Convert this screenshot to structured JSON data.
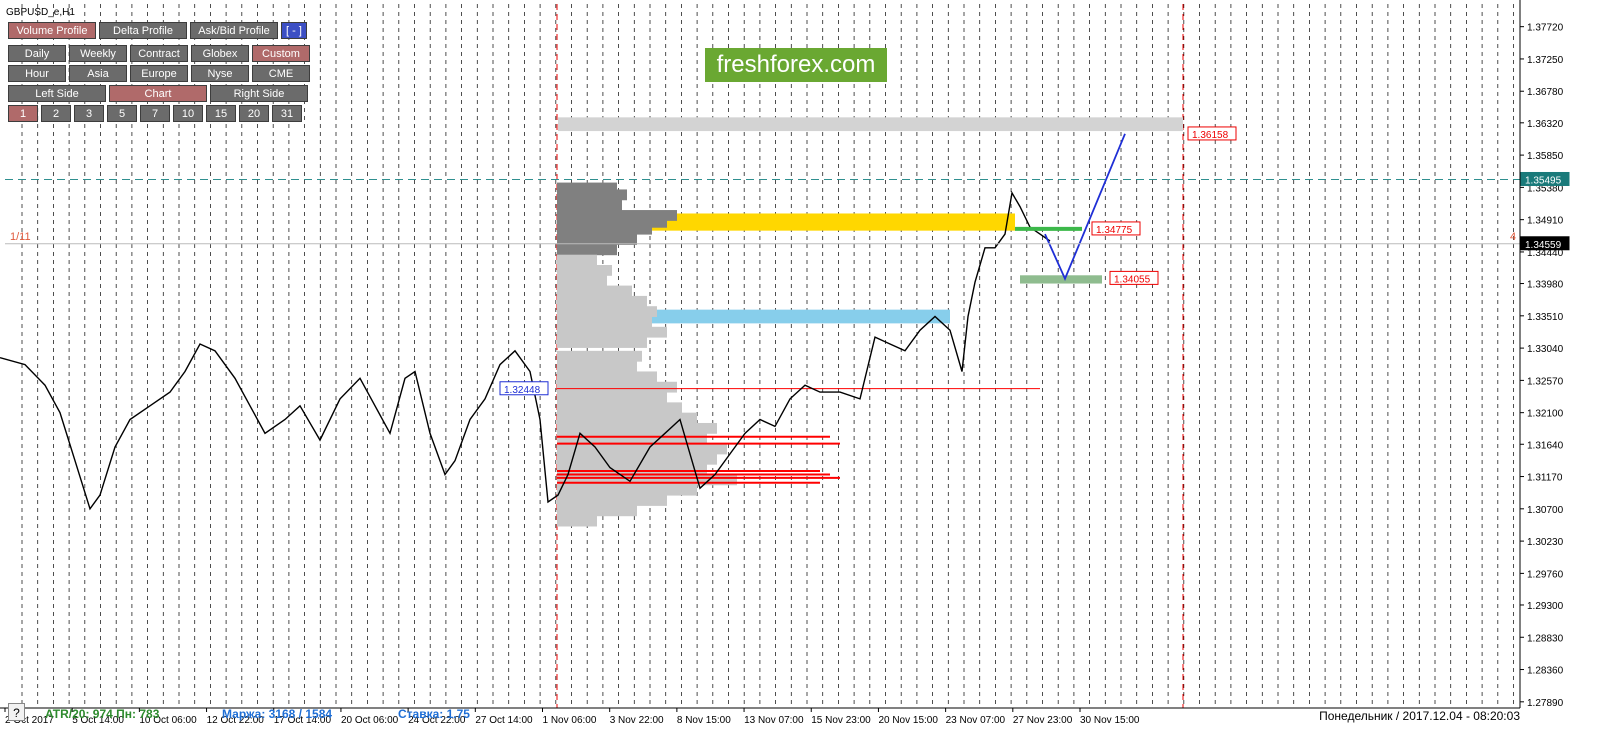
{
  "symbol_label": "GBPUSD_e,H1",
  "panel": {
    "row1": [
      {
        "label": "Volume Profile",
        "active": true
      },
      {
        "label": "Delta Profile",
        "active": false
      },
      {
        "label": "Ask/Bid Profile",
        "active": false
      },
      {
        "label": "[ - ]",
        "active": false,
        "blue": true
      }
    ],
    "row2": [
      {
        "label": "Daily",
        "active": false
      },
      {
        "label": "Weekly",
        "active": false
      },
      {
        "label": "Contract",
        "active": false
      },
      {
        "label": "Globex",
        "active": false
      },
      {
        "label": "Custom",
        "active": true
      }
    ],
    "row3": [
      {
        "label": "Hour",
        "active": false
      },
      {
        "label": "Asia",
        "active": false
      },
      {
        "label": "Europe",
        "active": false
      },
      {
        "label": "Nyse",
        "active": false
      },
      {
        "label": "CME",
        "active": false
      }
    ],
    "row4": [
      {
        "label": "Left Side",
        "active": false
      },
      {
        "label": "Chart",
        "active": true
      },
      {
        "label": "Right Side",
        "active": false
      }
    ],
    "row5": [
      {
        "label": "1",
        "active": true
      },
      {
        "label": "2",
        "active": false
      },
      {
        "label": "3",
        "active": false
      },
      {
        "label": "5",
        "active": false
      },
      {
        "label": "7",
        "active": false
      },
      {
        "label": "10",
        "active": false
      },
      {
        "label": "15",
        "active": false
      },
      {
        "label": "20",
        "active": false
      },
      {
        "label": "31",
        "active": false
      }
    ]
  },
  "logo_text": "freshforex.com",
  "status": {
    "atr": "ATR/20: 974 Пн: 783",
    "margin": "Маржа: 3168 / 1584",
    "rate": "Ставка: 1.75",
    "help": "?"
  },
  "footer_time": "Понедельник  /  2017.12.04  -  08:20:03",
  "left_marker": "1/11",
  "right_marker": "4",
  "colors": {
    "candles": "#000000",
    "poc_zone": "#ffd700",
    "value_zone": "#87ceeb",
    "target_zone": "#d3d3d3",
    "green_level": "#3cb84a",
    "green_zone": "#8fbc8f",
    "hvn_lines": "#ff0000",
    "forecast": "#1f2fd6",
    "dashed_teal": "#2f8f8f",
    "bid_tag": "#1a7a7a",
    "price_tag": "#000000",
    "profile_dark": "#808080",
    "profile_light": "#c8c8c8"
  },
  "chart_data": {
    "type": "candlestick",
    "timeframe": "H1",
    "ylim": [
      1.278,
      1.3805
    ],
    "y_ticks": [
      "1.37720",
      "1.37250",
      "1.36780",
      "1.36320",
      "1.35850",
      "1.35380",
      "1.34910",
      "1.34440",
      "1.33980",
      "1.33510",
      "1.33040",
      "1.32570",
      "1.32100",
      "1.31640",
      "1.31170",
      "1.30700",
      "1.30230",
      "1.29760",
      "1.29300",
      "1.28830",
      "1.28360",
      "1.27890"
    ],
    "x_ticks": [
      "2 Oct 2017",
      "5 Oct 14:00",
      "10 Oct 06:00",
      "12 Oct 22:00",
      "17 Oct 14:00",
      "20 Oct 06:00",
      "24 Oct 22:00",
      "27 Oct 14:00",
      "1 Nov 06:00",
      "3 Nov 22:00",
      "8 Nov 15:00",
      "13 Nov 07:00",
      "15 Nov 23:00",
      "20 Nov 15:00",
      "23 Nov 07:00",
      "27 Nov 23:00",
      "30 Nov 15:00"
    ],
    "price_path": [
      [
        0,
        1.329
      ],
      [
        25,
        1.328
      ],
      [
        45,
        1.325
      ],
      [
        60,
        1.321
      ],
      [
        75,
        1.314
      ],
      [
        90,
        1.307
      ],
      [
        100,
        1.309
      ],
      [
        115,
        1.316
      ],
      [
        130,
        1.32
      ],
      [
        150,
        1.322
      ],
      [
        170,
        1.324
      ],
      [
        185,
        1.327
      ],
      [
        200,
        1.331
      ],
      [
        215,
        1.33
      ],
      [
        235,
        1.326
      ],
      [
        250,
        1.322
      ],
      [
        265,
        1.318
      ],
      [
        285,
        1.32
      ],
      [
        300,
        1.322
      ],
      [
        320,
        1.317
      ],
      [
        340,
        1.323
      ],
      [
        360,
        1.326
      ],
      [
        375,
        1.322
      ],
      [
        390,
        1.318
      ],
      [
        405,
        1.326
      ],
      [
        415,
        1.327
      ],
      [
        430,
        1.318
      ],
      [
        445,
        1.312
      ],
      [
        455,
        1.314
      ],
      [
        470,
        1.32
      ],
      [
        485,
        1.323
      ],
      [
        500,
        1.328
      ],
      [
        515,
        1.33
      ],
      [
        530,
        1.327
      ],
      [
        540,
        1.32
      ],
      [
        548,
        1.308
      ],
      [
        558,
        1.309
      ],
      [
        568,
        1.312
      ],
      [
        580,
        1.318
      ],
      [
        595,
        1.316
      ],
      [
        610,
        1.313
      ],
      [
        630,
        1.311
      ],
      [
        650,
        1.316
      ],
      [
        665,
        1.318
      ],
      [
        680,
        1.32
      ],
      [
        690,
        1.315
      ],
      [
        700,
        1.31
      ],
      [
        715,
        1.312
      ],
      [
        730,
        1.315
      ],
      [
        745,
        1.318
      ],
      [
        760,
        1.32
      ],
      [
        775,
        1.319
      ],
      [
        790,
        1.323
      ],
      [
        805,
        1.325
      ],
      [
        820,
        1.324
      ],
      [
        840,
        1.324
      ],
      [
        860,
        1.323
      ],
      [
        875,
        1.332
      ],
      [
        890,
        1.331
      ],
      [
        905,
        1.33
      ],
      [
        920,
        1.333
      ],
      [
        935,
        1.335
      ],
      [
        950,
        1.333
      ],
      [
        962,
        1.327
      ],
      [
        968,
        1.335
      ],
      [
        975,
        1.34
      ],
      [
        985,
        1.345
      ],
      [
        995,
        1.345
      ],
      [
        1005,
        1.347
      ],
      [
        1012,
        1.353
      ],
      [
        1020,
        1.351
      ],
      [
        1030,
        1.348
      ],
      [
        1040,
        1.347
      ],
      [
        1050,
        1.346
      ]
    ],
    "forecast_path": [
      [
        1045,
        1.347
      ],
      [
        1065,
        1.3405
      ],
      [
        1125,
        1.3616
      ]
    ],
    "labels": {
      "current_price": "1.34559",
      "bid_line": "1.35495",
      "target_high": "1.36158",
      "level_green": "1.34775",
      "level_low": "1.34055",
      "blue_box": "1.32448"
    },
    "levels": {
      "current_price": 1.34559,
      "bid_line": 1.35495,
      "target_high": 1.36158,
      "level_green": 1.34775,
      "level_low": 1.34055,
      "blue_box": 1.32448
    },
    "zones": {
      "target": [
        1.362,
        1.364
      ],
      "poc": [
        1.3475,
        1.35
      ],
      "value": [
        1.334,
        1.336
      ],
      "green": [
        1.3398,
        1.341
      ]
    },
    "profile": [
      [
        1.3545,
        60
      ],
      [
        1.3535,
        70
      ],
      [
        1.352,
        65
      ],
      [
        1.3505,
        120
      ],
      [
        1.3495,
        110
      ],
      [
        1.3485,
        95
      ],
      [
        1.347,
        80
      ],
      [
        1.3455,
        60
      ],
      [
        1.344,
        40
      ],
      [
        1.3425,
        55
      ],
      [
        1.341,
        50
      ],
      [
        1.3395,
        75
      ],
      [
        1.338,
        90
      ],
      [
        1.3365,
        100
      ],
      [
        1.335,
        95
      ],
      [
        1.3335,
        110
      ],
      [
        1.332,
        90
      ],
      [
        1.33,
        85
      ],
      [
        1.3285,
        80
      ],
      [
        1.327,
        100
      ],
      [
        1.3255,
        120
      ],
      [
        1.324,
        110
      ],
      [
        1.3225,
        125
      ],
      [
        1.321,
        140
      ],
      [
        1.3195,
        160
      ],
      [
        1.318,
        150
      ],
      [
        1.3165,
        170
      ],
      [
        1.315,
        160
      ],
      [
        1.3135,
        150
      ],
      [
        1.312,
        180
      ],
      [
        1.3105,
        140
      ],
      [
        1.309,
        110
      ],
      [
        1.3075,
        80
      ],
      [
        1.306,
        40
      ]
    ],
    "hvn_levels": [
      1.3245,
      1.3175,
      1.3165,
      1.3125,
      1.312,
      1.3115,
      1.3108
    ]
  }
}
